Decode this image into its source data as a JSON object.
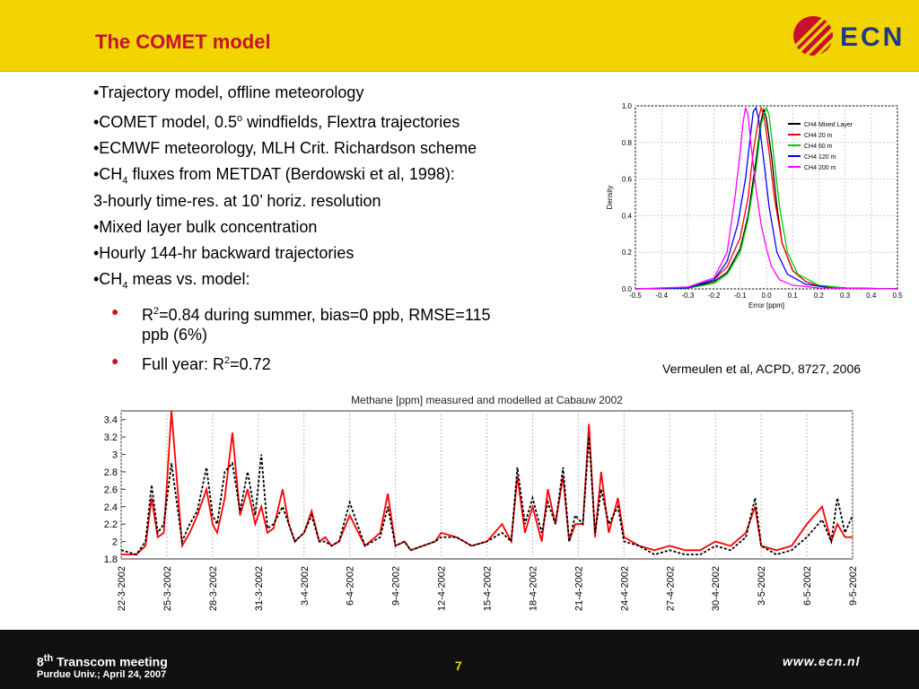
{
  "slide": {
    "title": "The COMET model",
    "logo_text": "ECN",
    "bullets": [
      {
        "pre": "•Trajectory model, offline meteorology"
      },
      {
        "pre": "•COMET model, 0.5",
        "sup": "o",
        "post": " windfields, Flextra trajectories"
      },
      {
        "pre": "•ECMWF meteorology, MLH Crit. Richardson scheme"
      },
      {
        "pre": "•CH",
        "sub": "4",
        "post": " fluxes from METDAT (Berdowski et al, 1998):",
        "line2": "3-hourly time-res. at 10’ horiz. resolution"
      },
      {
        "pre": "•Mixed layer bulk concentration"
      },
      {
        "pre": "•Hourly 144-hr backward trajectories"
      },
      {
        "pre": "•CH",
        "sub": "4",
        "post": " meas vs. model:"
      }
    ],
    "sub_bullets": [
      {
        "pre": "R",
        "sup": "2",
        "post": "=0.84 during summer, bias=0 ppb, RMSE=115",
        "line2": "ppb (6%)"
      },
      {
        "pre": "Full year: R",
        "sup": "2",
        "post": "=0.72"
      }
    ],
    "reference": "Vermeulen et al, ACPD, 8727, 2006"
  },
  "footer": {
    "meeting_pre": "8",
    "meeting_sup": "th",
    "meeting_post": " Transcom meeting",
    "place": "Purdue Univ.; April 24, 2007",
    "page_number": "7",
    "url": "www.ecn.nl"
  },
  "colors": {
    "header": "#f1d400",
    "title": "#c8102e",
    "footer": "#111111"
  },
  "chart_data": [
    {
      "type": "line",
      "xlabel": "Error [ppm]",
      "ylabel": "Density",
      "xlim": [
        -0.5,
        0.5
      ],
      "ylim": [
        0,
        1.0
      ],
      "xticks": [
        "-0.5",
        "-0.4",
        "-0.3",
        "-0.2",
        "-0.1",
        "0.0",
        "0.1",
        "0.2",
        "0.3",
        "0.4",
        "0.5"
      ],
      "yticks": [
        "0.0",
        "0.2",
        "0.4",
        "0.6",
        "0.8",
        "1.0"
      ],
      "grid": true,
      "legend_position": "top-right",
      "series": [
        {
          "name": "CH4 Mixed Layer",
          "color": "#000000",
          "x": [
            -0.5,
            -0.3,
            -0.2,
            -0.15,
            -0.1,
            -0.07,
            -0.04,
            -0.02,
            -0.01,
            0.0,
            0.02,
            0.04,
            0.06,
            0.1,
            0.15,
            0.2,
            0.3,
            0.5
          ],
          "y": [
            0.0,
            0.005,
            0.04,
            0.09,
            0.22,
            0.4,
            0.7,
            0.92,
            0.98,
            0.93,
            0.72,
            0.45,
            0.25,
            0.1,
            0.04,
            0.015,
            0.005,
            0.0
          ]
        },
        {
          "name": "CH4 20 m",
          "color": "#ff0000",
          "x": [
            -0.5,
            -0.3,
            -0.2,
            -0.15,
            -0.1,
            -0.07,
            -0.05,
            -0.03,
            -0.02,
            -0.01,
            0.01,
            0.03,
            0.06,
            0.1,
            0.15,
            0.2,
            0.3,
            0.5
          ],
          "y": [
            0.0,
            0.005,
            0.05,
            0.12,
            0.28,
            0.5,
            0.75,
            0.93,
            0.99,
            0.95,
            0.75,
            0.5,
            0.25,
            0.1,
            0.04,
            0.015,
            0.005,
            0.0
          ]
        },
        {
          "name": "CH4 60 m",
          "color": "#00cc00",
          "x": [
            -0.5,
            -0.3,
            -0.2,
            -0.15,
            -0.1,
            -0.07,
            -0.04,
            -0.02,
            0.0,
            0.01,
            0.03,
            0.05,
            0.08,
            0.12,
            0.2,
            0.3,
            0.5
          ],
          "y": [
            0.0,
            0.004,
            0.03,
            0.08,
            0.2,
            0.38,
            0.65,
            0.9,
            0.99,
            0.95,
            0.7,
            0.45,
            0.2,
            0.08,
            0.02,
            0.005,
            0.0
          ]
        },
        {
          "name": "CH4 120 m",
          "color": "#0000ff",
          "x": [
            -0.5,
            -0.3,
            -0.2,
            -0.15,
            -0.11,
            -0.08,
            -0.06,
            -0.05,
            -0.04,
            -0.03,
            -0.01,
            0.01,
            0.04,
            0.08,
            0.15,
            0.25,
            0.5
          ],
          "y": [
            0.0,
            0.005,
            0.05,
            0.15,
            0.35,
            0.6,
            0.85,
            0.97,
            0.99,
            0.93,
            0.7,
            0.45,
            0.2,
            0.08,
            0.025,
            0.005,
            0.0
          ]
        },
        {
          "name": "CH4 200 m",
          "color": "#ff00ff",
          "x": [
            -0.5,
            -0.3,
            -0.2,
            -0.15,
            -0.12,
            -0.1,
            -0.09,
            -0.08,
            -0.07,
            -0.06,
            -0.04,
            -0.02,
            0.0,
            0.02,
            0.05,
            0.1,
            0.2,
            0.5
          ],
          "y": [
            0.0,
            0.01,
            0.06,
            0.2,
            0.5,
            0.75,
            0.9,
            0.99,
            0.95,
            0.8,
            0.55,
            0.35,
            0.22,
            0.12,
            0.05,
            0.02,
            0.005,
            0.0
          ]
        }
      ]
    },
    {
      "type": "line",
      "title": "Methane [ppm] measured and modelled at Cabauw 2002",
      "ylim": [
        1.8,
        3.5
      ],
      "yticks": [
        "1.8",
        "2",
        "2.2",
        "2.4",
        "2.6",
        "2.8",
        "3",
        "3.2",
        "3.4"
      ],
      "x_categories": [
        "22-3-2002",
        "25-3-2002",
        "28-3-2002",
        "31-3-2002",
        "3-4-2002",
        "6-4-2002",
        "9-4-2002",
        "12-4-2002",
        "15-4-2002",
        "18-4-2002",
        "21-4-2002",
        "24-4-2002",
        "27-4-2002",
        "30-4-2002",
        "3-5-2002",
        "6-5-2002",
        "9-5-2002"
      ],
      "x_day_start": 0,
      "x_day_end": 48,
      "series": [
        {
          "name": "",
          "color": "#ff0000",
          "style": "solid",
          "x": [
            0,
            1,
            1.6,
            2,
            2.4,
            2.8,
            3.3,
            4,
            4.5,
            5,
            5.6,
            6,
            6.3,
            6.8,
            7.3,
            7.8,
            8.3,
            8.8,
            9.2,
            9.6,
            10,
            10.6,
            11,
            11.4,
            12,
            12.5,
            13,
            13.4,
            13.8,
            14.3,
            15,
            16,
            17,
            17.5,
            18,
            18.6,
            19,
            19.8,
            20.6,
            21,
            22,
            23,
            24,
            25,
            25.6,
            26,
            26.5,
            27,
            27.6,
            28,
            28.5,
            29,
            29.4,
            29.8,
            30.3,
            30.7,
            31.1,
            31.5,
            32,
            32.6,
            33,
            34,
            35,
            36,
            37,
            38,
            39,
            40,
            41,
            41.6,
            42,
            43,
            44,
            45,
            46,
            46.6,
            47,
            47.5,
            48
          ],
          "y": [
            1.85,
            1.85,
            1.95,
            2.5,
            2.05,
            2.1,
            3.5,
            1.95,
            2.1,
            2.3,
            2.6,
            2.2,
            2.1,
            2.5,
            3.25,
            2.3,
            2.6,
            2.2,
            2.4,
            2.1,
            2.15,
            2.6,
            2.2,
            2.0,
            2.1,
            2.35,
            2.0,
            2.05,
            1.95,
            2.0,
            2.3,
            1.95,
            2.1,
            2.55,
            1.95,
            2.0,
            1.9,
            1.95,
            2.0,
            2.1,
            2.05,
            1.95,
            2.0,
            2.2,
            2.0,
            2.75,
            2.1,
            2.4,
            2.0,
            2.6,
            2.2,
            2.75,
            2.0,
            2.2,
            2.2,
            3.35,
            2.05,
            2.8,
            2.1,
            2.5,
            2.05,
            1.95,
            1.9,
            1.95,
            1.9,
            1.9,
            2.0,
            1.95,
            2.1,
            2.4,
            1.95,
            1.9,
            1.95,
            2.2,
            2.4,
            2.0,
            2.2,
            2.05,
            2.05
          ]
        },
        {
          "name": "",
          "color": "#000000",
          "style": "dashed",
          "x": [
            0,
            1,
            1.6,
            2,
            2.4,
            2.8,
            3.3,
            4,
            4.5,
            5,
            5.6,
            6,
            6.3,
            6.8,
            7.3,
            7.8,
            8.3,
            8.8,
            9.2,
            9.6,
            10,
            10.6,
            11,
            11.4,
            12,
            12.5,
            13,
            13.4,
            13.8,
            14.3,
            15,
            16,
            17,
            17.5,
            18,
            18.6,
            19,
            19.8,
            20.6,
            21,
            22,
            23,
            24,
            25,
            25.6,
            26,
            26.5,
            27,
            27.6,
            28,
            28.5,
            29,
            29.4,
            29.8,
            30.3,
            30.7,
            31.1,
            31.5,
            32,
            32.6,
            33,
            34,
            35,
            36,
            37,
            38,
            39,
            40,
            41,
            41.6,
            42,
            43,
            44,
            45,
            46,
            46.6,
            47,
            47.5,
            48
          ],
          "y": [
            1.9,
            1.85,
            2.0,
            2.65,
            2.1,
            2.2,
            2.9,
            2.0,
            2.2,
            2.35,
            2.85,
            2.3,
            2.2,
            2.8,
            2.9,
            2.35,
            2.8,
            2.3,
            3.0,
            2.15,
            2.2,
            2.4,
            2.2,
            2.0,
            2.1,
            2.3,
            2.0,
            2.0,
            1.95,
            2.0,
            2.45,
            1.95,
            2.05,
            2.4,
            1.95,
            2.0,
            1.9,
            1.95,
            2.0,
            2.05,
            2.05,
            1.95,
            2.0,
            2.1,
            2.0,
            2.85,
            2.2,
            2.5,
            2.1,
            2.45,
            2.2,
            2.85,
            2.0,
            2.3,
            2.2,
            3.2,
            2.1,
            2.6,
            2.2,
            2.4,
            2.0,
            1.95,
            1.85,
            1.9,
            1.85,
            1.85,
            1.95,
            1.9,
            2.05,
            2.5,
            1.95,
            1.85,
            1.9,
            2.05,
            2.25,
            2.0,
            2.5,
            2.1,
            2.3
          ]
        }
      ]
    }
  ]
}
